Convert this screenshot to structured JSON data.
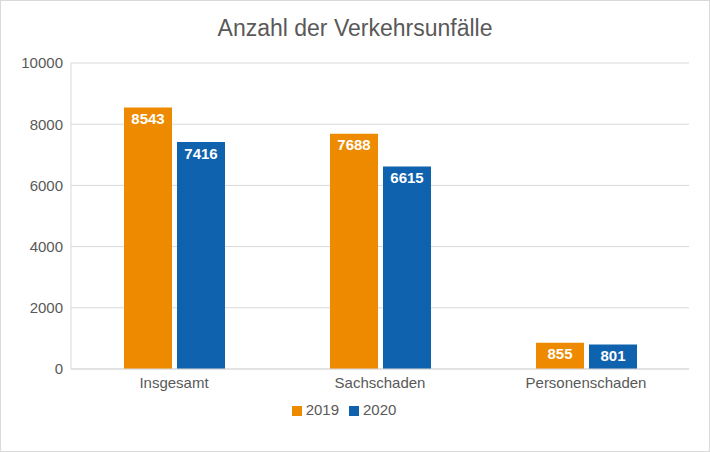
{
  "chart_data": {
    "type": "bar",
    "title": "Anzahl der Verkehrsunfälle",
    "categories": [
      "Insgesamt",
      "Sachschaden",
      "Personenschaden"
    ],
    "series": [
      {
        "name": "2019",
        "color": "#EE8A00",
        "values": [
          8543,
          7688,
          855
        ]
      },
      {
        "name": "2020",
        "color": "#0F62AE",
        "values": [
          7416,
          6615,
          801
        ]
      }
    ],
    "ylim": [
      0,
      10000
    ],
    "yticks": [
      0,
      2000,
      4000,
      6000,
      8000,
      10000
    ],
    "grid": true,
    "legend": "bottom",
    "data_labels": true
  }
}
